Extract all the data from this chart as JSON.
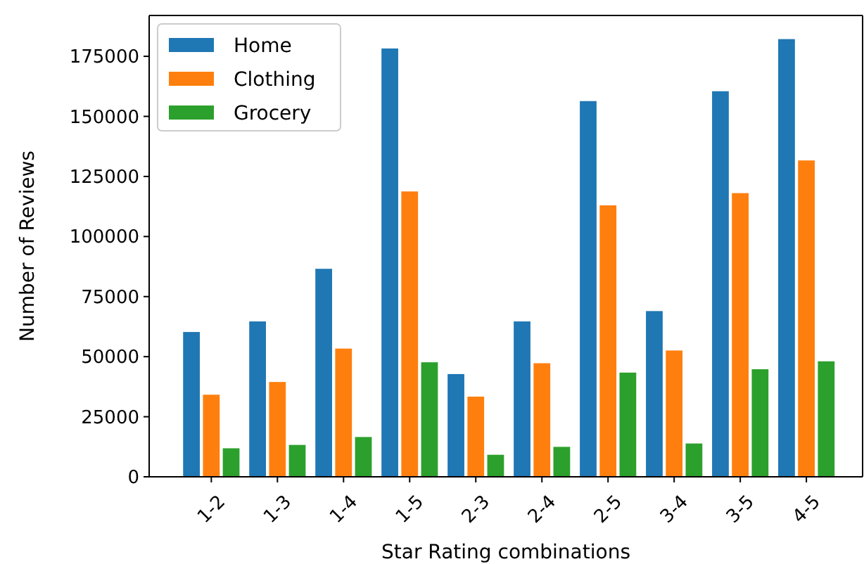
{
  "chart_data": {
    "type": "bar",
    "xlabel": "Star Rating combinations",
    "ylabel": "Number of Reviews",
    "categories": [
      "1-2",
      "1-3",
      "1-4",
      "1-5",
      "2-3",
      "2-4",
      "2-5",
      "3-4",
      "3-5",
      "4-5"
    ],
    "series": [
      {
        "name": "Home",
        "color": "#1f77b4",
        "values": [
          60500,
          64900,
          86800,
          178500,
          43000,
          64900,
          156600,
          69200,
          160700,
          182400
        ]
      },
      {
        "name": "Clothing",
        "color": "#ff7f0e",
        "values": [
          34400,
          39700,
          53600,
          119000,
          33600,
          47500,
          113200,
          52800,
          118300,
          131900
        ]
      },
      {
        "name": "Grocery",
        "color": "#2ca02c",
        "values": [
          12100,
          13500,
          16800,
          47900,
          9400,
          12700,
          43600,
          14100,
          45000,
          48300
        ]
      }
    ],
    "ylim": [
      0,
      192000
    ],
    "yticks": [
      0,
      25000,
      50000,
      75000,
      100000,
      125000,
      150000,
      175000
    ],
    "legend": "top left"
  }
}
